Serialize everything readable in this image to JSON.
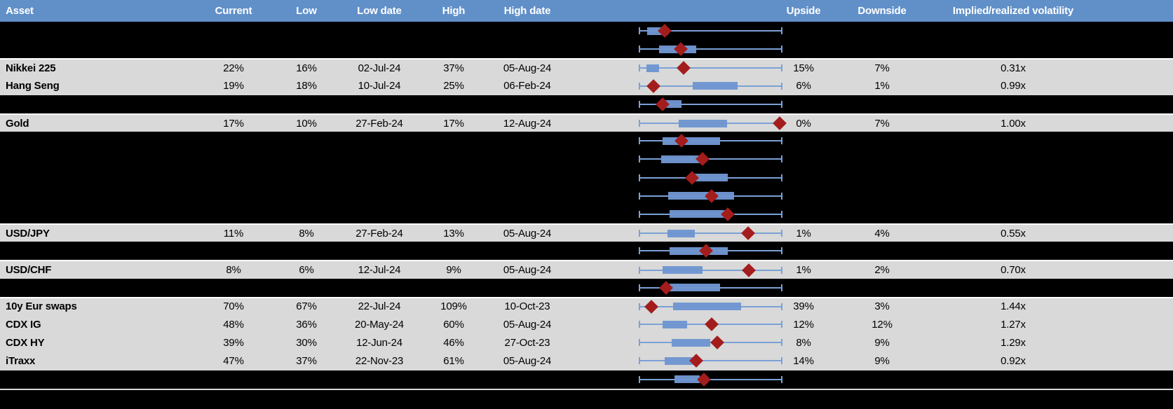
{
  "colors": {
    "header_bg": "#6190c9",
    "header_text": "#ffffff",
    "row_dark": "#000000",
    "row_light": "#d9d9d9",
    "cell_text": "#000000",
    "box_fill": "#6f96d1",
    "whisker": "#7ba1d6",
    "marker": "#a31d1d",
    "separator": "#ffffff",
    "footer_line": "#d9d9d9"
  },
  "chart_data": {
    "type": "table",
    "columns": [
      {
        "key": "asset",
        "label": "Asset"
      },
      {
        "key": "current",
        "label": "Current"
      },
      {
        "key": "low",
        "label": "Low"
      },
      {
        "key": "low_date",
        "label": "Low date"
      },
      {
        "key": "high",
        "label": "High"
      },
      {
        "key": "high_date",
        "label": "High date"
      },
      {
        "key": "range_plot",
        "label": ""
      },
      {
        "key": "upside",
        "label": "Upside"
      },
      {
        "key": "downside",
        "label": "Downside"
      },
      {
        "key": "implied_realized",
        "label": "Implied/realized volatility"
      }
    ],
    "rows": [
      {
        "kind": "redacted",
        "plot": {
          "box": [
            0.054,
            0.202
          ],
          "marker": 0.177
        }
      },
      {
        "kind": "redacted",
        "plot": {
          "box": [
            0.138,
            0.399
          ],
          "marker": 0.291
        }
      },
      {
        "kind": "data",
        "separator": true,
        "asset": "Nikkei 225",
        "current": "22%",
        "low": "16%",
        "low_date": "02-Jul-24",
        "high": "37%",
        "high_date": "05-Aug-24",
        "upside": "15%",
        "downside": "7%",
        "implied_realized": "0.31x",
        "plot": {
          "box": [
            0.049,
            0.138
          ],
          "marker": 0.31
        }
      },
      {
        "kind": "data",
        "asset": "Hang Seng",
        "current": "19%",
        "low": "18%",
        "low_date": "10-Jul-24",
        "high": "25%",
        "high_date": "06-Feb-24",
        "upside": "6%",
        "downside": "1%",
        "implied_realized": "0.99x",
        "plot": {
          "box": [
            0.374,
            0.69
          ],
          "marker": 0.099
        }
      },
      {
        "kind": "redacted",
        "plot": {
          "box": [
            0.148,
            0.296
          ],
          "marker": 0.163
        }
      },
      {
        "kind": "data",
        "separator": true,
        "asset": "Gold",
        "current": "17%",
        "low": "10%",
        "low_date": "27-Feb-24",
        "high": "17%",
        "high_date": "12-Aug-24",
        "upside": "0%",
        "downside": "7%",
        "implied_realized": "1.00x",
        "plot": {
          "box": [
            0.276,
            0.616
          ],
          "marker": 0.985
        }
      },
      {
        "kind": "redacted",
        "plot": {
          "box": [
            0.163,
            0.566
          ],
          "marker": 0.296
        }
      },
      {
        "kind": "redacted",
        "plot": {
          "box": [
            0.153,
            0.424
          ],
          "marker": 0.443
        }
      },
      {
        "kind": "redacted",
        "plot": {
          "box": [
            0.384,
            0.621
          ],
          "marker": 0.369
        }
      },
      {
        "kind": "redacted",
        "plot": {
          "box": [
            0.202,
            0.665
          ],
          "marker": 0.507
        }
      },
      {
        "kind": "redacted",
        "plot": {
          "box": [
            0.212,
            0.631
          ],
          "marker": 0.621
        }
      },
      {
        "kind": "data",
        "separator": true,
        "asset": "USD/JPY",
        "current": "11%",
        "low": "8%",
        "low_date": "27-Feb-24",
        "high": "13%",
        "high_date": "05-Aug-24",
        "upside": "1%",
        "downside": "4%",
        "implied_realized": "0.55x",
        "plot": {
          "box": [
            0.197,
            0.389
          ],
          "marker": 0.764
        }
      },
      {
        "kind": "redacted",
        "plot": {
          "box": [
            0.212,
            0.621
          ],
          "marker": 0.468
        }
      },
      {
        "kind": "data",
        "separator": true,
        "asset": "USD/CHF",
        "current": "8%",
        "low": "6%",
        "low_date": "12-Jul-24",
        "high": "9%",
        "high_date": "05-Aug-24",
        "upside": "1%",
        "downside": "2%",
        "implied_realized": "0.70x",
        "plot": {
          "box": [
            0.163,
            0.443
          ],
          "marker": 0.768
        }
      },
      {
        "kind": "redacted",
        "plot": {
          "box": [
            0.212,
            0.566
          ],
          "marker": 0.187
        }
      },
      {
        "kind": "data",
        "separator": true,
        "asset": "10y Eur swaps",
        "current": "70%",
        "low": "67%",
        "low_date": "22-Jul-24",
        "high": "109%",
        "high_date": "10-Oct-23",
        "upside": "39%",
        "downside": "3%",
        "implied_realized": "1.44x",
        "plot": {
          "box": [
            0.236,
            0.714
          ],
          "marker": 0.084
        }
      },
      {
        "kind": "data",
        "asset": "CDX IG",
        "current": "48%",
        "low": "36%",
        "low_date": "20-May-24",
        "high": "60%",
        "high_date": "05-Aug-24",
        "upside": "12%",
        "downside": "12%",
        "implied_realized": "1.27x",
        "plot": {
          "box": [
            0.163,
            0.335
          ],
          "marker": 0.507
        }
      },
      {
        "kind": "data",
        "asset": "CDX HY",
        "current": "39%",
        "low": "30%",
        "low_date": "12-Jun-24",
        "high": "46%",
        "high_date": "27-Oct-23",
        "upside": "8%",
        "downside": "9%",
        "implied_realized": "1.29x",
        "plot": {
          "box": [
            0.227,
            0.497
          ],
          "marker": 0.547
        }
      },
      {
        "kind": "data",
        "asset": "iTraxx",
        "current": "47%",
        "low": "37%",
        "low_date": "22-Nov-23",
        "high": "61%",
        "high_date": "05-Aug-24",
        "upside": "14%",
        "downside": "9%",
        "implied_realized": "0.92x",
        "plot": {
          "box": [
            0.177,
            0.399
          ],
          "marker": 0.399
        }
      },
      {
        "kind": "redacted",
        "plot": {
          "box": [
            0.246,
            0.424
          ],
          "marker": 0.453
        }
      }
    ]
  }
}
